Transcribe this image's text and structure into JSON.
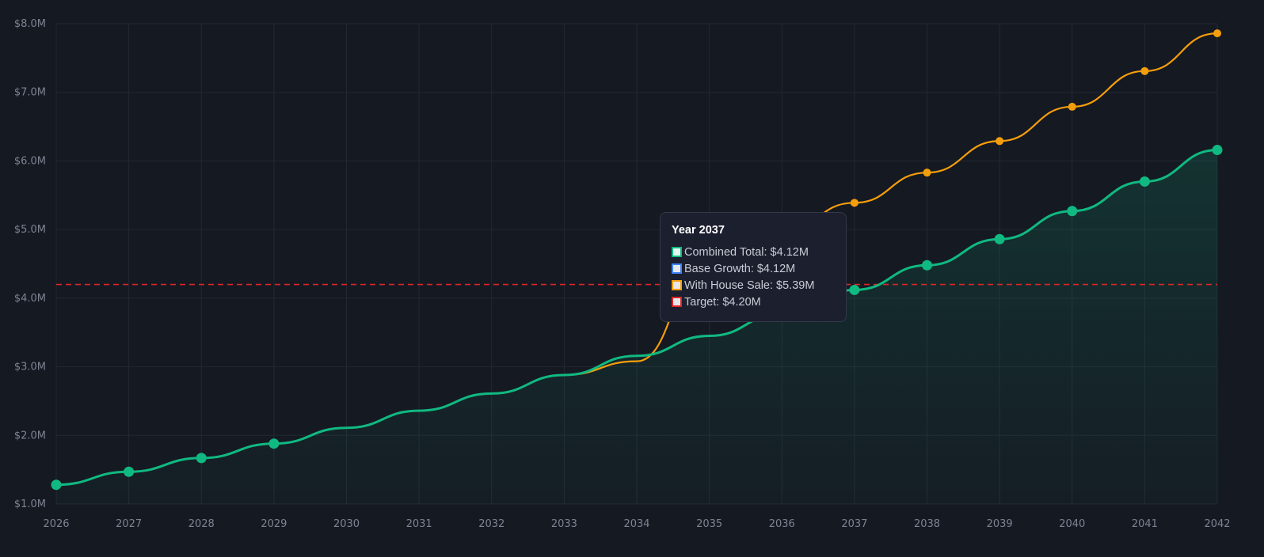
{
  "chart_data": {
    "type": "line",
    "title": "",
    "xlabel": "",
    "ylabel": "",
    "x": [
      2026,
      2027,
      2028,
      2029,
      2030,
      2031,
      2032,
      2033,
      2034,
      2035,
      2036,
      2037,
      2038,
      2039,
      2040,
      2041,
      2042
    ],
    "xlim": [
      2026,
      2042
    ],
    "ylim": [
      1.0,
      8.0
    ],
    "y_ticks": [
      "$1.0M",
      "$2.0M",
      "$3.0M",
      "$4.0M",
      "$5.0M",
      "$6.0M",
      "$7.0M",
      "$8.0M"
    ],
    "x_ticks": [
      "2026",
      "2027",
      "2028",
      "2029",
      "2030",
      "2031",
      "2032",
      "2033",
      "2034",
      "2035",
      "2036",
      "2037",
      "2038",
      "2039",
      "2040",
      "2041",
      "2042"
    ],
    "grid": true,
    "series": [
      {
        "name": "Combined Total",
        "color": "#10b981",
        "fill": true,
        "values": [
          1.28,
          1.47,
          1.67,
          1.88,
          2.11,
          2.36,
          2.61,
          2.88,
          3.16,
          3.45,
          3.77,
          4.12,
          4.48,
          4.86,
          5.27,
          5.7,
          6.16
        ],
        "markers": [
          0,
          1,
          2,
          3,
          11,
          12,
          13,
          14,
          15,
          16
        ]
      },
      {
        "name": "With House Sale",
        "color": "#f59e0b",
        "values": [
          1.28,
          1.47,
          1.67,
          1.88,
          2.11,
          2.36,
          2.61,
          2.88,
          3.08,
          4.58,
          4.97,
          5.39,
          5.83,
          6.29,
          6.79,
          7.31,
          7.86
        ],
        "markers": [
          11,
          12,
          13,
          14,
          15,
          16
        ]
      },
      {
        "name": "Target",
        "color": "#dc2626",
        "dashed": true,
        "value": 4.2
      }
    ],
    "tooltip": {
      "title": "Year 2037",
      "rows": [
        {
          "label": "Combined Total: $4.12M",
          "color": "#10b981"
        },
        {
          "label": "Base Growth: $4.12M",
          "color": "#3b82f6"
        },
        {
          "label": "With House Sale: $5.39M",
          "color": "#f59e0b"
        },
        {
          "label": "Target: $4.20M",
          "color": "#dc2626"
        }
      ]
    }
  }
}
